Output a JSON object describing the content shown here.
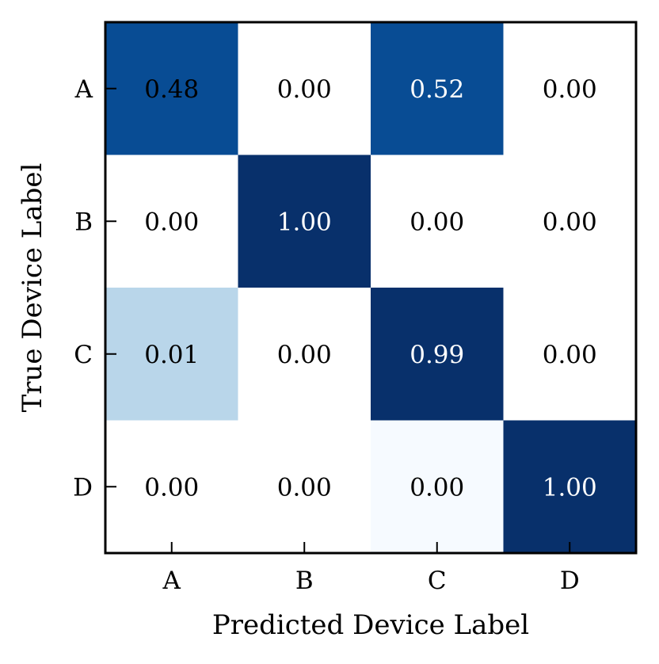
{
  "chart_data": {
    "type": "heatmap",
    "title": "",
    "xlabel": "Predicted Device Label",
    "ylabel": "True Device Label",
    "x_categories": [
      "A",
      "B",
      "C",
      "D"
    ],
    "y_categories": [
      "A",
      "B",
      "C",
      "D"
    ],
    "values": [
      [
        0.48,
        0.0,
        0.52,
        0.0
      ],
      [
        0.0,
        1.0,
        0.0,
        0.0
      ],
      [
        0.01,
        0.0,
        0.99,
        0.0
      ],
      [
        0.0,
        0.0,
        0.0,
        1.0
      ]
    ],
    "cell_labels": [
      [
        "0.48",
        "0.00",
        "0.52",
        "0.00"
      ],
      [
        "0.00",
        "1.00",
        "0.00",
        "0.00"
      ],
      [
        "0.01",
        "0.00",
        "0.99",
        "0.00"
      ],
      [
        "0.00",
        "0.00",
        "0.00",
        "1.00"
      ]
    ],
    "cell_colors": [
      [
        "#084c94",
        "#ffffff",
        "#084c94",
        "#ffffff"
      ],
      [
        "#ffffff",
        "#08306b",
        "#ffffff",
        "#ffffff"
      ],
      [
        "#b9d6ea",
        "#ffffff",
        "#08306b",
        "#ffffff"
      ],
      [
        "#ffffff",
        "#ffffff",
        "#f6faff",
        "#08306b"
      ]
    ],
    "colormap": "Blues",
    "grid": false,
    "legend": "none"
  }
}
